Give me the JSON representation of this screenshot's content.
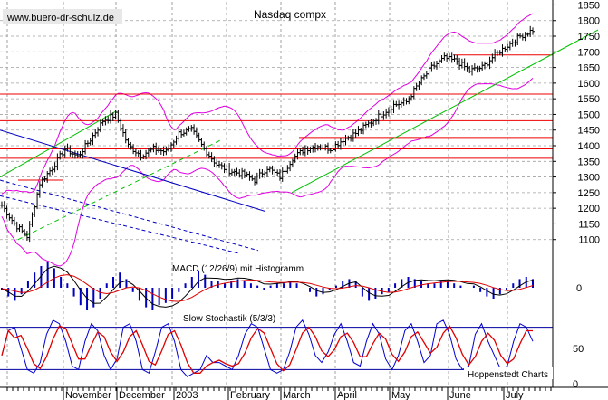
{
  "watermark": "www.buero-dr-schulz.de",
  "title": "Nasdaq compx",
  "macd_label": "MACD (12/26/9) mit Histogramm",
  "stoch_label": "Slow Stochastik (5/3/3)",
  "credit": "Hoppenstedt Charts",
  "colors": {
    "bollinger": "#e000e0",
    "resistance": "#ee0000",
    "trend_up": "#00c000",
    "trend_down": "#0000c0",
    "signal": "#e00000",
    "macd_hist": "#0000c0",
    "stoch_fast": "#0000d0",
    "stoch_slow": "#e00000",
    "stoch_band": "#0000a0",
    "grid": "#a0a0a0"
  },
  "chart_data": [
    {
      "type": "line",
      "name": "price",
      "title": "Nasdaq compx",
      "ylim": [
        1050,
        1860
      ],
      "y_ticks": [
        1100,
        1150,
        1200,
        1250,
        1300,
        1350,
        1400,
        1450,
        1500,
        1550,
        1600,
        1650,
        1700,
        1750,
        1800,
        1850
      ],
      "x_labels": [
        "November",
        "December",
        "2003",
        "February",
        "March",
        "April",
        "May",
        "June",
        "July"
      ],
      "closes_weekly": [
        1210,
        1150,
        1110,
        1280,
        1330,
        1390,
        1365,
        1420,
        1480,
        1500,
        1400,
        1370,
        1390,
        1380,
        1440,
        1450,
        1390,
        1340,
        1320,
        1310,
        1290,
        1330,
        1300,
        1360,
        1390,
        1400,
        1390,
        1420,
        1440,
        1470,
        1500,
        1530,
        1540,
        1600,
        1650,
        1680,
        1670,
        1640,
        1650,
        1690,
        1720,
        1750,
        1770
      ],
      "resistance_levels": [
        1690,
        1565,
        1480,
        1425,
        1390,
        1360
      ],
      "bollinger_band": true,
      "grid": true
    },
    {
      "type": "bar",
      "name": "macd",
      "title": "MACD (12/26/9) mit Histogramm",
      "y_ticks": [
        0
      ],
      "histogram": [
        -2,
        -8,
        -12,
        -6,
        6,
        14,
        20,
        24,
        18,
        10,
        4,
        -8,
        -16,
        -20,
        -18,
        -10,
        4,
        10,
        14,
        8,
        -4,
        -12,
        -18,
        -20,
        -16,
        -14,
        -10,
        -4,
        4,
        10,
        16,
        12,
        6,
        6,
        4,
        6,
        8,
        6,
        4,
        2,
        -2,
        2,
        4,
        4,
        6,
        4,
        0,
        -4,
        -8,
        -6,
        -2,
        2,
        6,
        8,
        6,
        -8,
        -12,
        -10,
        -6,
        -4,
        4,
        8,
        10,
        8,
        6,
        4,
        4,
        6,
        6,
        4,
        2,
        0,
        2,
        -4,
        -8,
        -10,
        -6,
        -2,
        4,
        8,
        10,
        8
      ],
      "legend": "none"
    },
    {
      "type": "line",
      "name": "stochastic",
      "title": "Slow Stochastik (5/3/3)",
      "ylim": [
        0,
        100
      ],
      "y_ticks": [
        0,
        50
      ],
      "bands": [
        20,
        80
      ],
      "k_values": [
        40,
        75,
        80,
        50,
        20,
        15,
        30,
        70,
        90,
        85,
        60,
        25,
        20,
        60,
        85,
        75,
        40,
        20,
        35,
        80,
        85,
        60,
        20,
        15,
        45,
        80,
        85,
        60,
        20,
        10,
        15,
        20,
        40,
        30,
        30,
        25,
        20,
        40,
        70,
        85,
        80,
        50,
        20,
        15,
        20,
        45,
        80,
        90,
        70,
        40,
        30,
        45,
        70,
        85,
        60,
        30,
        25,
        60,
        85,
        70,
        35,
        20,
        40,
        75,
        85,
        60,
        30,
        40,
        85,
        90,
        70,
        35,
        20,
        25,
        70,
        85,
        60,
        40,
        20,
        25,
        60,
        85,
        80,
        60
      ],
      "legend": "none"
    }
  ]
}
